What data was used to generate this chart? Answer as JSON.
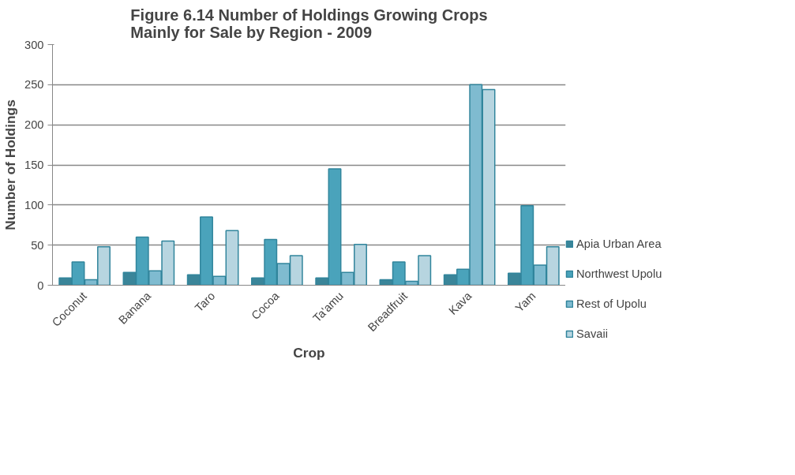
{
  "chart_data": {
    "type": "bar",
    "title": "Figure 6.14 Number of Holdings Growing Crops Mainly for Sale by Region - 2009",
    "xlabel": "Crop",
    "ylabel": "Number of Holdings",
    "categories": [
      "Coconut",
      "Banana",
      "Taro",
      "Cocoa",
      "Ta'amu",
      "Breadfruit",
      "Kava",
      "Yam"
    ],
    "series": [
      {
        "name": "Apia Urban Area",
        "color": "#3a8599",
        "values": [
          9,
          16,
          13,
          9,
          9,
          7,
          13,
          15
        ]
      },
      {
        "name": "Northwest Upolu",
        "color": "#4aa3bb",
        "values": [
          29,
          60,
          85,
          57,
          145,
          29,
          20,
          99
        ]
      },
      {
        "name": "Rest of Upolu",
        "color": "#7fbbd0",
        "values": [
          7,
          18,
          11,
          27,
          16,
          5,
          250,
          25
        ]
      },
      {
        "name": "Savaii",
        "color": "#b7d5e0",
        "values": [
          48,
          55,
          68,
          37,
          51,
          37,
          244,
          48
        ]
      }
    ],
    "ylim": [
      0,
      300
    ],
    "yticks": [
      0,
      50,
      100,
      150,
      200,
      250,
      300
    ],
    "grid": "y",
    "legend": "right"
  }
}
